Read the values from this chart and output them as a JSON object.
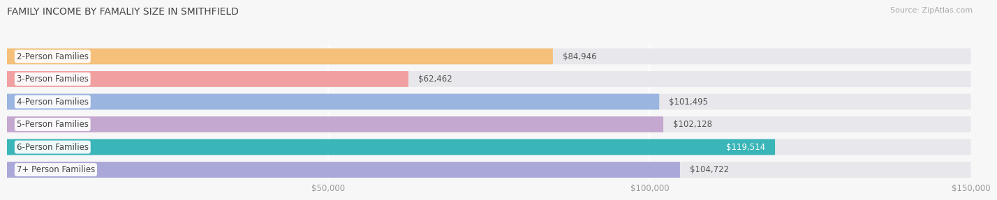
{
  "title": "FAMILY INCOME BY FAMALIY SIZE IN SMITHFIELD",
  "source": "Source: ZipAtlas.com",
  "categories": [
    "2-Person Families",
    "3-Person Families",
    "4-Person Families",
    "5-Person Families",
    "6-Person Families",
    "7+ Person Families"
  ],
  "values": [
    84946,
    62462,
    101495,
    102128,
    119514,
    104722
  ],
  "bar_colors": [
    "#f5c07a",
    "#f0a0a0",
    "#9ab5e0",
    "#c4a8d0",
    "#3ab5b8",
    "#aaa8d8"
  ],
  "label_colors": [
    "#555555",
    "#555555",
    "#555555",
    "#555555",
    "#ffffff",
    "#555555"
  ],
  "xlim": [
    0,
    150000
  ],
  "xticks": [
    50000,
    100000,
    150000
  ],
  "xtick_labels": [
    "$50,000",
    "$100,000",
    "$150,000"
  ],
  "background_color": "#f7f7f7",
  "bar_background_color": "#e8e8ec",
  "title_fontsize": 10,
  "source_fontsize": 8,
  "label_fontsize": 8.5,
  "tick_fontsize": 8.5
}
